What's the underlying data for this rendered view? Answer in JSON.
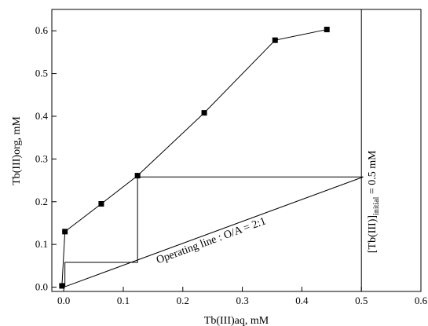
{
  "chart_data": {
    "type": "scatter",
    "xlabel": "Tb(III)aq, mM",
    "ylabel": "Tb(III)org, mM",
    "xlim": [
      -0.02,
      0.6
    ],
    "ylim": [
      -0.01,
      0.65
    ],
    "xticks": [
      "0.0",
      "0.1",
      "0.2",
      "0.3",
      "0.4",
      "0.5",
      "0.6"
    ],
    "yticks": [
      "0.0",
      "0.1",
      "0.2",
      "0.3",
      "0.4",
      "0.5",
      "0.6"
    ],
    "grid": false,
    "series": [
      {
        "marker": "square",
        "connected": true,
        "x": [
          -0.003,
          0.002,
          0.063,
          0.124,
          0.236,
          0.355,
          0.442
        ],
        "y": [
          0.003,
          0.13,
          0.195,
          0.261,
          0.408,
          0.578,
          0.603
        ]
      }
    ],
    "operating_line": {
      "x": [
        0.0,
        0.503
      ],
      "y": [
        0.0,
        0.258
      ],
      "label": "Operating line : O/A = 2:1"
    },
    "steps": {
      "x": [
        0.503,
        0.124,
        0.124,
        0.002,
        0.002,
        -0.003
      ],
      "y": [
        0.258,
        0.258,
        0.058,
        0.058,
        0.003,
        0.003
      ]
    },
    "vline": {
      "x": 0.5,
      "label_prefix": "[Tb(III)]",
      "label_subscript": "initial",
      "label_suffix": " = 0.5 mM"
    }
  }
}
